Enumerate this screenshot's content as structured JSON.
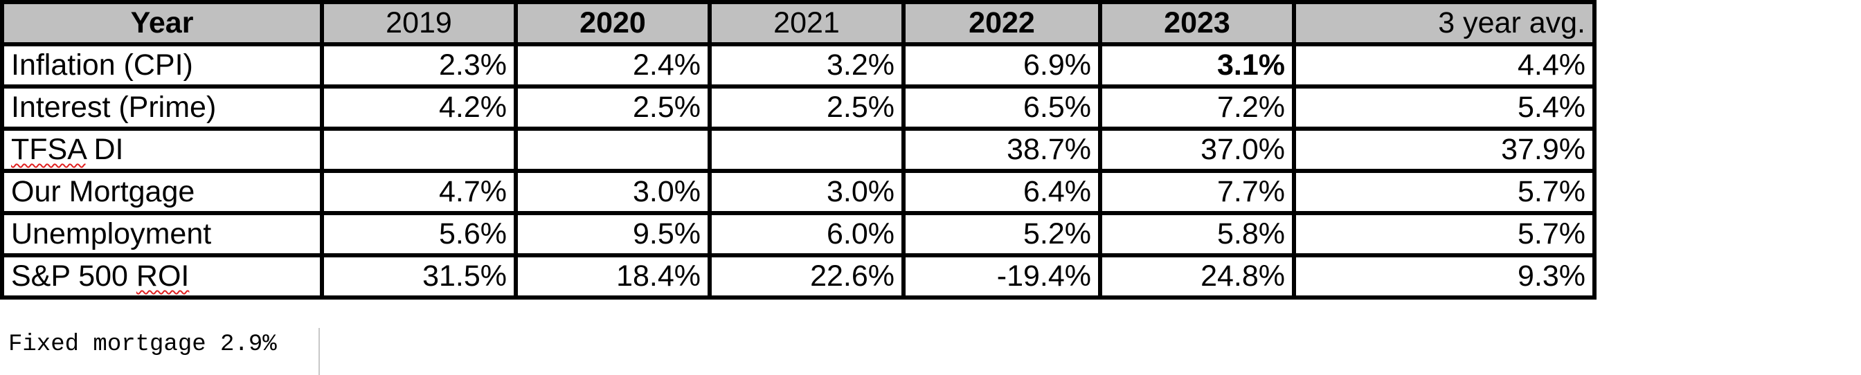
{
  "table": {
    "headers": [
      "Year",
      "2019",
      "2020",
      "2021",
      "2022",
      "2023",
      "3 year avg."
    ],
    "rows": [
      {
        "label": "Inflation (CPI)",
        "values": [
          "2.3%",
          "2.4%",
          "3.2%",
          "6.9%",
          "3.1%",
          "4.4%"
        ]
      },
      {
        "label": "Interest (Prime)",
        "values": [
          "4.2%",
          "2.5%",
          "2.5%",
          "6.5%",
          "7.2%",
          "5.4%"
        ]
      },
      {
        "label_parts": [
          "TFSA",
          " DI"
        ],
        "values": [
          "",
          "",
          "",
          "38.7%",
          "37.0%",
          "37.9%"
        ]
      },
      {
        "label": "Our Mortgage",
        "values": [
          "4.7%",
          "3.0%",
          "3.0%",
          "6.4%",
          "7.7%",
          "5.7%"
        ]
      },
      {
        "label": "Unemployment",
        "values": [
          "5.6%",
          "9.5%",
          "6.0%",
          "5.2%",
          "5.8%",
          "5.7%"
        ]
      },
      {
        "label_parts": [
          "S&P 500 ",
          "ROI"
        ],
        "values": [
          "31.5%",
          "18.4%",
          "22.6%",
          "-19.4%",
          "24.8%",
          "9.3%"
        ]
      }
    ]
  },
  "note": "Fixed mortgage 2.9%",
  "colors": {
    "header_fill": "#c0c0c0",
    "border": "#000000",
    "spellcheck_underline": "#e02020"
  }
}
